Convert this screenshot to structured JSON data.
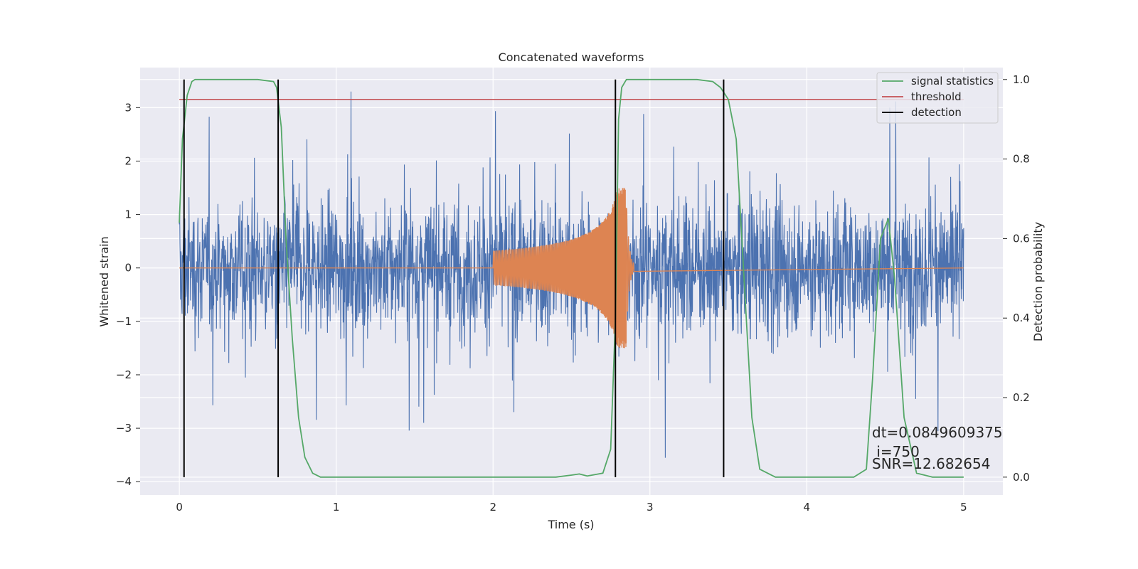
{
  "chart_data": {
    "type": "line",
    "title": "Concatenated waveforms",
    "xlabel": "Time (s)",
    "ylabel": "Whitened strain",
    "y2label": "Detection probability",
    "xlim": [
      -0.25,
      5.25
    ],
    "ylim": [
      -4.25,
      3.75
    ],
    "y2lim": [
      -0.045,
      1.03
    ],
    "xticks": [
      0,
      1,
      2,
      3,
      4,
      5
    ],
    "yticks": [
      -4,
      -3,
      -2,
      -1,
      0,
      1,
      2,
      3
    ],
    "y2ticks": [
      0.0,
      0.2,
      0.4,
      0.6,
      0.8,
      1.0
    ],
    "grid": true,
    "legend_position": "top-right",
    "colors": {
      "strain": "#4c72b0",
      "template": "#dd8452",
      "signal_statistics": "#55a868",
      "threshold": "#c44e52",
      "detection": "#000000",
      "background": "#eaeaf2",
      "grid": "#ffffff"
    },
    "series": [
      {
        "name": "signal statistics",
        "axis": "right",
        "x": [
          0.0,
          0.02,
          0.05,
          0.08,
          0.1,
          0.15,
          0.3,
          0.5,
          0.6,
          0.62,
          0.65,
          0.68,
          0.72,
          0.76,
          0.8,
          0.85,
          0.9,
          1.0,
          1.5,
          2.0,
          2.4,
          2.5,
          2.55,
          2.6,
          2.7,
          2.75,
          2.78,
          2.8,
          2.82,
          2.85,
          3.0,
          3.3,
          3.4,
          3.45,
          3.5,
          3.55,
          3.6,
          3.65,
          3.7,
          3.8,
          4.0,
          4.3,
          4.38,
          4.42,
          4.47,
          4.52,
          4.56,
          4.62,
          4.7,
          4.8,
          5.0
        ],
        "y": [
          0.64,
          0.85,
          0.96,
          0.995,
          1.0,
          1.0,
          1.0,
          1.0,
          0.995,
          0.98,
          0.88,
          0.6,
          0.35,
          0.15,
          0.05,
          0.01,
          0.0,
          0.0,
          0.0,
          0.0,
          0.0,
          0.005,
          0.008,
          0.003,
          0.01,
          0.07,
          0.4,
          0.9,
          0.98,
          1.0,
          1.0,
          1.0,
          0.995,
          0.98,
          0.95,
          0.85,
          0.5,
          0.15,
          0.02,
          0.0,
          0.0,
          0.0,
          0.02,
          0.25,
          0.6,
          0.65,
          0.5,
          0.15,
          0.01,
          0.0,
          0.0
        ]
      },
      {
        "name": "threshold",
        "axis": "right",
        "x": [
          0.0,
          5.0
        ],
        "y": [
          0.95,
          0.95
        ]
      },
      {
        "name": "detection",
        "axis": "right",
        "vlines": [
          0.03,
          0.63,
          2.78,
          3.47
        ],
        "ymin": 0.0,
        "ymax": 1.0
      }
    ],
    "annotations": [
      "dt=0.0849609375",
      " i=750",
      "SNR=12.682654"
    ]
  }
}
